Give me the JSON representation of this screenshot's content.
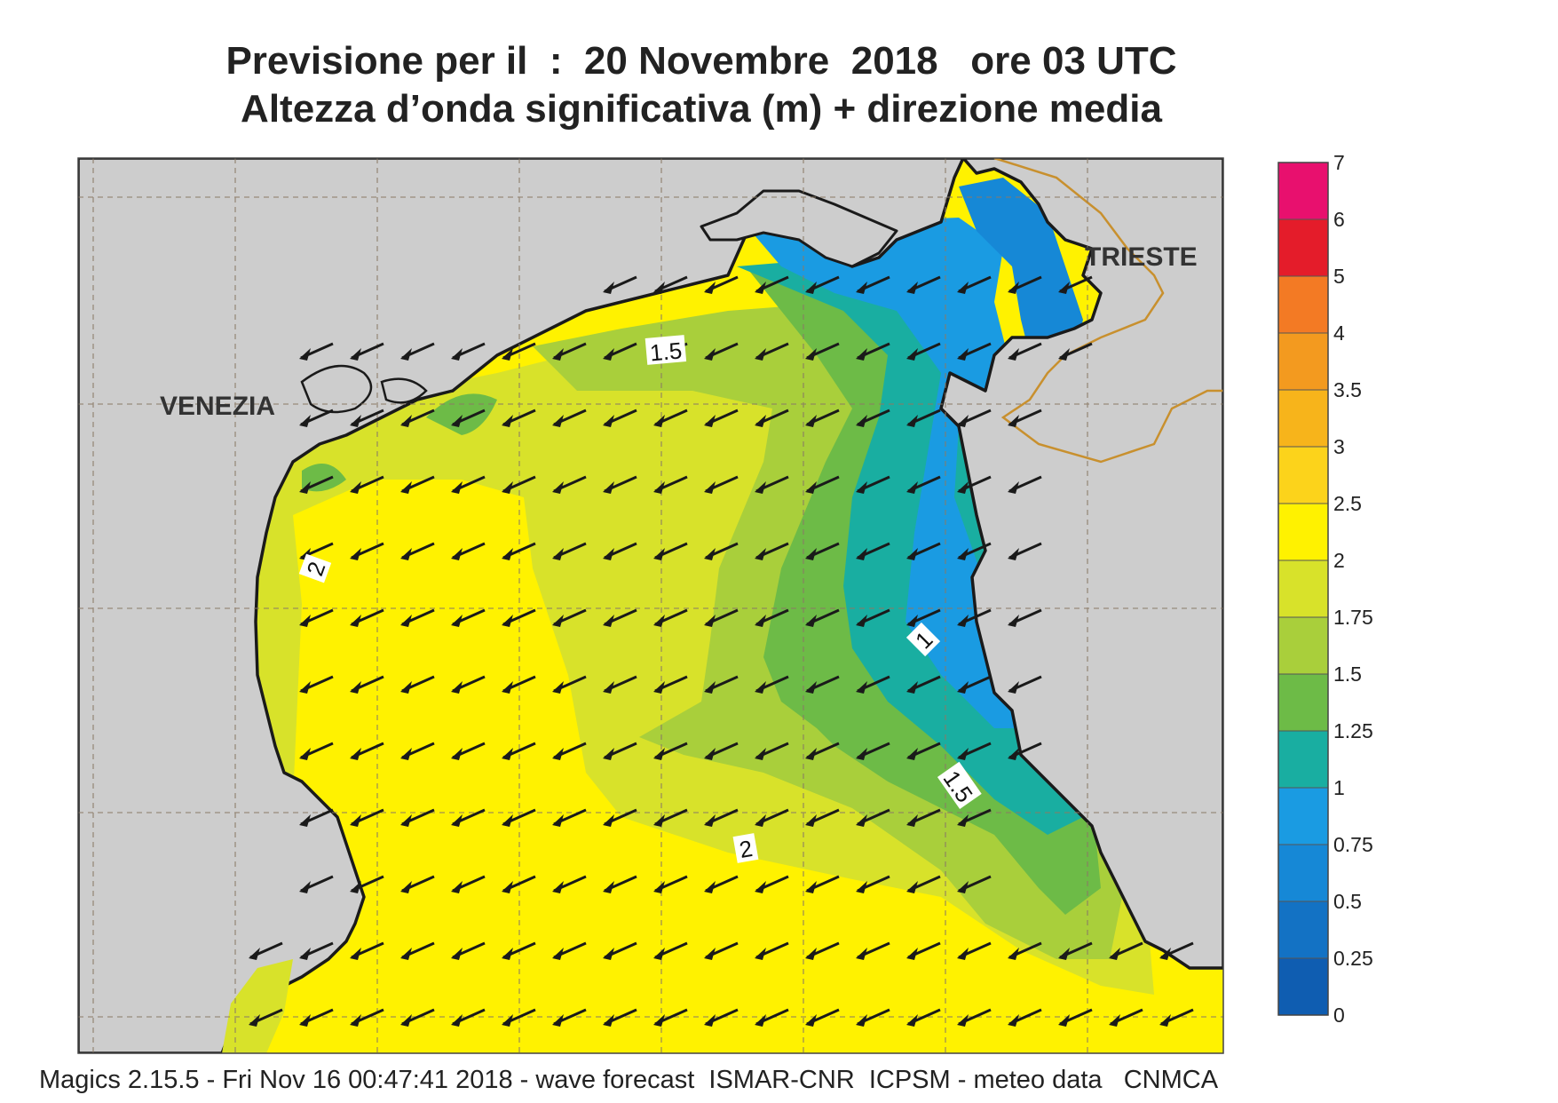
{
  "title": {
    "line1": "Previsione per il  :  20 Novembre  2018   ore 03 UTC",
    "line2": "Altezza d’onda significativa (m) + direzione media"
  },
  "places": {
    "venezia": "VENEZIA",
    "trieste": "TRIESTE"
  },
  "contour_labels": [
    "1.5",
    "2",
    "1",
    "1.5",
    "2"
  ],
  "legend": {
    "ticks": [
      "7",
      "6",
      "5",
      "4",
      "3.5",
      "3",
      "2.5",
      "2",
      "1.75",
      "1.5",
      "1.25",
      "1",
      "0.75",
      "0.5",
      "0.25",
      "0"
    ],
    "colors": [
      "#e8106e",
      "#e41c2a",
      "#f37a24",
      "#f39a1f",
      "#f7b41b",
      "#fcd31b",
      "#fff200",
      "#d8e22a",
      "#a9cf3b",
      "#6dbb47",
      "#19aea1",
      "#1a9be2",
      "#1688d6",
      "#1372c4",
      "#0f5db1"
    ]
  },
  "colors": {
    "land": "#cdcdcd",
    "coast": "#1a1a1a",
    "border": "#c8902e",
    "arrow": "#1a1a1a"
  },
  "footer": "Magics 2.15.5 - Fri Nov 16 00:47:41 2018 - wave forecast  ISMAR-CNR  ICPSM - meteo data   CNMCA"
}
